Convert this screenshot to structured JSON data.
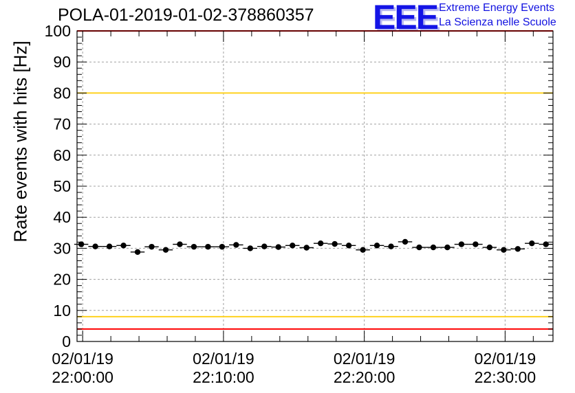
{
  "header": {
    "title": "POLA-01-2019-01-02-378860357",
    "logo_text": "EEE",
    "logo_line1": "Extreme Energy Events",
    "logo_line2": "La Scienza nelle Scuole"
  },
  "chart_data": {
    "type": "scatter",
    "title": "POLA-01-2019-01-02-378860357",
    "ylabel": "Rate events with hits [Hz]",
    "xlabel": "",
    "ylim": [
      0,
      100
    ],
    "xlim_minutes": [
      -0.4,
      33.4
    ],
    "grid": true,
    "y_ticks": [
      0,
      10,
      20,
      30,
      40,
      50,
      60,
      70,
      80,
      90,
      100
    ],
    "x_ticks": [
      {
        "minute": 0,
        "date": "02/01/19",
        "time": "22:00:00"
      },
      {
        "minute": 10,
        "date": "02/01/19",
        "time": "22:10:00"
      },
      {
        "minute": 20,
        "date": "02/01/19",
        "time": "22:20:00"
      },
      {
        "minute": 30,
        "date": "02/01/19",
        "time": "22:30:00"
      }
    ],
    "reference_lines": [
      {
        "y": 100,
        "color": "#ff0000"
      },
      {
        "y": 80,
        "color": "#ffd21e"
      },
      {
        "y": 8,
        "color": "#ffd21e"
      },
      {
        "y": 4,
        "color": "#ff0000"
      }
    ],
    "series": [
      {
        "x_minutes": [
          -0.1,
          0.9,
          1.9,
          2.9,
          3.9,
          4.9,
          5.9,
          6.9,
          7.9,
          8.9,
          9.9,
          10.9,
          11.9,
          12.9,
          13.9,
          14.9,
          15.9,
          16.9,
          17.9,
          18.9,
          19.9,
          20.9,
          21.9,
          22.9,
          23.9,
          24.9,
          25.9,
          26.9,
          27.9,
          28.9,
          29.9,
          30.9,
          31.9,
          32.9
        ],
        "values": [
          31.3,
          30.6,
          30.6,
          30.9,
          28.8,
          30.5,
          29.5,
          31.3,
          30.5,
          30.5,
          30.5,
          31.1,
          30.0,
          30.6,
          30.4,
          30.9,
          30.2,
          31.6,
          31.4,
          30.9,
          29.5,
          30.9,
          30.6,
          32.1,
          30.3,
          30.3,
          30.3,
          31.3,
          31.3,
          30.3,
          29.5,
          29.8,
          31.6,
          31.3
        ]
      }
    ]
  }
}
